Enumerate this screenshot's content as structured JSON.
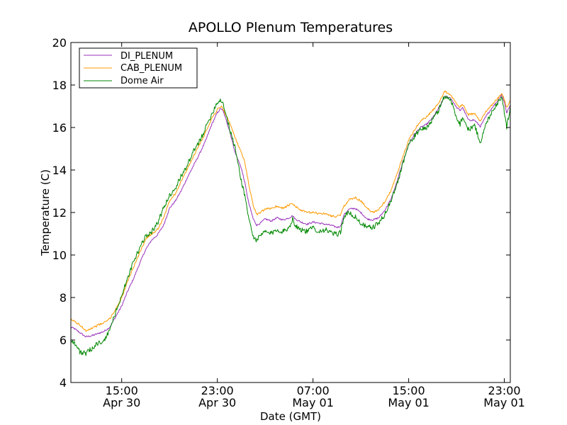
{
  "chart_data": {
    "type": "line",
    "title": "APOLLO Plenum Temperatures",
    "xlabel": "Date (GMT)",
    "ylabel": "Temperature (C)",
    "x_unit": "hours since Apr 30 00:00 GMT",
    "xlim": [
      10.75,
      47.5
    ],
    "ylim": [
      4,
      20
    ],
    "yticks": [
      4,
      6,
      8,
      10,
      12,
      14,
      16,
      18,
      20
    ],
    "xticks": [
      {
        "value": 15,
        "time": "15:00",
        "date": "Apr 30"
      },
      {
        "value": 23,
        "time": "23:00",
        "date": "Apr 30"
      },
      {
        "value": 31,
        "time": "07:00",
        "date": "May 01"
      },
      {
        "value": 39,
        "time": "15:00",
        "date": "May 01"
      },
      {
        "value": 47,
        "time": "23:00",
        "date": "May 01"
      }
    ],
    "grid": false,
    "legend_position": "top-left",
    "series": [
      {
        "name": "DI_PLENUM",
        "color": "#9933bb",
        "noise": 0.04,
        "points": [
          [
            10.75,
            6.6
          ],
          [
            11,
            6.55
          ],
          [
            11.5,
            6.35
          ],
          [
            12,
            6.15
          ],
          [
            12.5,
            6.2
          ],
          [
            13,
            6.3
          ],
          [
            13.5,
            6.4
          ],
          [
            14,
            6.6
          ],
          [
            14.5,
            7.1
          ],
          [
            15,
            7.6
          ],
          [
            15.5,
            8.3
          ],
          [
            16,
            8.9
          ],
          [
            16.5,
            9.6
          ],
          [
            17,
            10.25
          ],
          [
            17.5,
            10.7
          ],
          [
            18,
            10.95
          ],
          [
            18.5,
            11.4
          ],
          [
            19,
            12.2
          ],
          [
            19.5,
            12.55
          ],
          [
            20,
            13.05
          ],
          [
            20.5,
            13.65
          ],
          [
            21,
            14.2
          ],
          [
            21.5,
            14.75
          ],
          [
            22,
            15.35
          ],
          [
            22.5,
            16.1
          ],
          [
            23,
            16.7
          ],
          [
            23.3,
            16.9
          ],
          [
            23.5,
            16.75
          ],
          [
            24,
            15.9
          ],
          [
            24.5,
            14.8
          ],
          [
            25,
            14.1
          ],
          [
            25.3,
            13.4
          ],
          [
            25.6,
            12.5
          ],
          [
            26,
            11.7
          ],
          [
            26.3,
            11.4
          ],
          [
            26.6,
            11.5
          ],
          [
            27,
            11.7
          ],
          [
            27.5,
            11.6
          ],
          [
            28,
            11.75
          ],
          [
            28.5,
            11.65
          ],
          [
            29,
            11.75
          ],
          [
            29.3,
            11.85
          ],
          [
            29.5,
            11.7
          ],
          [
            30,
            11.55
          ],
          [
            30.5,
            11.45
          ],
          [
            31,
            11.55
          ],
          [
            31.5,
            11.5
          ],
          [
            32,
            11.45
          ],
          [
            32.5,
            11.4
          ],
          [
            33,
            11.3
          ],
          [
            33.3,
            11.35
          ],
          [
            33.6,
            11.9
          ],
          [
            34,
            12.15
          ],
          [
            34.5,
            12.2
          ],
          [
            35,
            12.0
          ],
          [
            35.5,
            11.7
          ],
          [
            36,
            11.65
          ],
          [
            36.5,
            11.75
          ],
          [
            37,
            12.1
          ],
          [
            37.5,
            12.6
          ],
          [
            38,
            13.4
          ],
          [
            38.5,
            14.35
          ],
          [
            39,
            15.2
          ],
          [
            39.5,
            15.7
          ],
          [
            40,
            16.0
          ],
          [
            40.5,
            16.15
          ],
          [
            41,
            16.45
          ],
          [
            41.5,
            16.9
          ],
          [
            42,
            17.45
          ],
          [
            42.5,
            17.4
          ],
          [
            43,
            16.95
          ],
          [
            43.3,
            16.8
          ],
          [
            43.5,
            16.95
          ],
          [
            44,
            16.35
          ],
          [
            44.5,
            16.35
          ],
          [
            45,
            16.05
          ],
          [
            45.5,
            16.55
          ],
          [
            46,
            16.95
          ],
          [
            46.5,
            17.3
          ],
          [
            46.8,
            17.55
          ],
          [
            47,
            17.2
          ],
          [
            47.2,
            16.7
          ],
          [
            47.5,
            17.05
          ]
        ]
      },
      {
        "name": "CAB_PLENUM",
        "color": "#ff9900",
        "noise": 0.05,
        "points": [
          [
            10.75,
            6.95
          ],
          [
            11,
            6.9
          ],
          [
            11.5,
            6.7
          ],
          [
            12,
            6.45
          ],
          [
            12.5,
            6.55
          ],
          [
            13,
            6.7
          ],
          [
            13.5,
            6.8
          ],
          [
            14,
            7.0
          ],
          [
            14.5,
            7.45
          ],
          [
            15,
            8.0
          ],
          [
            15.5,
            8.75
          ],
          [
            16,
            9.45
          ],
          [
            16.5,
            10.1
          ],
          [
            17,
            10.75
          ],
          [
            17.5,
            11.0
          ],
          [
            18,
            11.2
          ],
          [
            18.5,
            11.75
          ],
          [
            19,
            12.55
          ],
          [
            19.5,
            12.9
          ],
          [
            20,
            13.5
          ],
          [
            20.5,
            14.05
          ],
          [
            21,
            14.65
          ],
          [
            21.5,
            15.2
          ],
          [
            22,
            15.75
          ],
          [
            22.5,
            16.4
          ],
          [
            23,
            16.85
          ],
          [
            23.3,
            17.0
          ],
          [
            23.5,
            16.85
          ],
          [
            24,
            16.25
          ],
          [
            24.5,
            15.5
          ],
          [
            25,
            14.85
          ],
          [
            25.3,
            14.35
          ],
          [
            25.6,
            13.4
          ],
          [
            26,
            12.35
          ],
          [
            26.3,
            11.9
          ],
          [
            26.6,
            12.0
          ],
          [
            27,
            12.15
          ],
          [
            27.5,
            12.2
          ],
          [
            28,
            12.3
          ],
          [
            28.5,
            12.2
          ],
          [
            29,
            12.35
          ],
          [
            29.3,
            12.4
          ],
          [
            29.5,
            12.3
          ],
          [
            30,
            12.1
          ],
          [
            30.5,
            12.0
          ],
          [
            31,
            12.0
          ],
          [
            31.5,
            11.95
          ],
          [
            32,
            11.95
          ],
          [
            32.5,
            11.85
          ],
          [
            33,
            11.8
          ],
          [
            33.3,
            11.9
          ],
          [
            33.6,
            12.3
          ],
          [
            34,
            12.6
          ],
          [
            34.5,
            12.7
          ],
          [
            35,
            12.55
          ],
          [
            35.5,
            12.2
          ],
          [
            36,
            12.0
          ],
          [
            36.5,
            12.15
          ],
          [
            37,
            12.5
          ],
          [
            37.5,
            13.0
          ],
          [
            38,
            13.75
          ],
          [
            38.5,
            14.6
          ],
          [
            39,
            15.4
          ],
          [
            39.5,
            15.9
          ],
          [
            40,
            16.3
          ],
          [
            40.5,
            16.5
          ],
          [
            41,
            16.8
          ],
          [
            41.5,
            17.15
          ],
          [
            42,
            17.7
          ],
          [
            42.5,
            17.55
          ],
          [
            43,
            17.1
          ],
          [
            43.3,
            16.95
          ],
          [
            43.5,
            17.1
          ],
          [
            44,
            16.6
          ],
          [
            44.5,
            16.65
          ],
          [
            45,
            16.3
          ],
          [
            45.5,
            16.8
          ],
          [
            46,
            17.1
          ],
          [
            46.5,
            17.4
          ],
          [
            46.8,
            17.6
          ],
          [
            47,
            17.3
          ],
          [
            47.2,
            16.95
          ],
          [
            47.5,
            17.3
          ]
        ]
      },
      {
        "name": "Dome Air",
        "color": "#008800",
        "noise": 0.12,
        "points": [
          [
            10.75,
            6.0
          ],
          [
            11,
            5.9
          ],
          [
            11.5,
            5.45
          ],
          [
            12,
            5.35
          ],
          [
            12.5,
            5.6
          ],
          [
            13,
            5.85
          ],
          [
            13.5,
            5.9
          ],
          [
            14,
            6.5
          ],
          [
            14.5,
            7.3
          ],
          [
            15,
            8.1
          ],
          [
            15.5,
            8.9
          ],
          [
            16,
            9.7
          ],
          [
            16.5,
            10.3
          ],
          [
            17,
            10.9
          ],
          [
            17.5,
            11.1
          ],
          [
            18,
            11.5
          ],
          [
            18.5,
            12.2
          ],
          [
            19,
            12.8
          ],
          [
            19.5,
            13.15
          ],
          [
            20,
            13.75
          ],
          [
            20.5,
            14.25
          ],
          [
            21,
            14.85
          ],
          [
            21.5,
            15.35
          ],
          [
            22,
            15.95
          ],
          [
            22.5,
            16.6
          ],
          [
            23,
            17.2
          ],
          [
            23.3,
            17.3
          ],
          [
            23.5,
            17.1
          ],
          [
            24,
            16.0
          ],
          [
            24.5,
            15.0
          ],
          [
            25,
            13.5
          ],
          [
            25.3,
            12.8
          ],
          [
            25.6,
            11.8
          ],
          [
            26,
            10.85
          ],
          [
            26.3,
            10.7
          ],
          [
            26.6,
            10.9
          ],
          [
            27,
            11.1
          ],
          [
            27.5,
            11.0
          ],
          [
            28,
            11.2
          ],
          [
            28.5,
            11.1
          ],
          [
            29,
            11.3
          ],
          [
            29.3,
            11.7
          ],
          [
            29.5,
            11.4
          ],
          [
            30,
            11.2
          ],
          [
            30.5,
            11.1
          ],
          [
            31,
            11.3
          ],
          [
            31.5,
            11.1
          ],
          [
            32,
            11.2
          ],
          [
            32.5,
            11.05
          ],
          [
            33,
            10.95
          ],
          [
            33.3,
            11.1
          ],
          [
            33.6,
            11.8
          ],
          [
            34,
            12.0
          ],
          [
            34.5,
            11.8
          ],
          [
            35,
            11.5
          ],
          [
            35.5,
            11.3
          ],
          [
            36,
            11.3
          ],
          [
            36.5,
            11.5
          ],
          [
            37,
            11.9
          ],
          [
            37.5,
            12.5
          ],
          [
            38,
            13.3
          ],
          [
            38.5,
            14.3
          ],
          [
            39,
            15.2
          ],
          [
            39.5,
            15.6
          ],
          [
            40,
            15.9
          ],
          [
            40.5,
            16.0
          ],
          [
            41,
            16.35
          ],
          [
            41.5,
            16.8
          ],
          [
            42,
            17.5
          ],
          [
            42.5,
            17.3
          ],
          [
            43,
            16.5
          ],
          [
            43.3,
            16.15
          ],
          [
            43.5,
            16.5
          ],
          [
            44,
            15.9
          ],
          [
            44.5,
            16.1
          ],
          [
            45,
            15.3
          ],
          [
            45.5,
            16.2
          ],
          [
            46,
            16.8
          ],
          [
            46.5,
            17.2
          ],
          [
            46.8,
            17.5
          ],
          [
            47,
            16.7
          ],
          [
            47.2,
            16.0
          ],
          [
            47.5,
            17.0
          ]
        ]
      }
    ]
  }
}
